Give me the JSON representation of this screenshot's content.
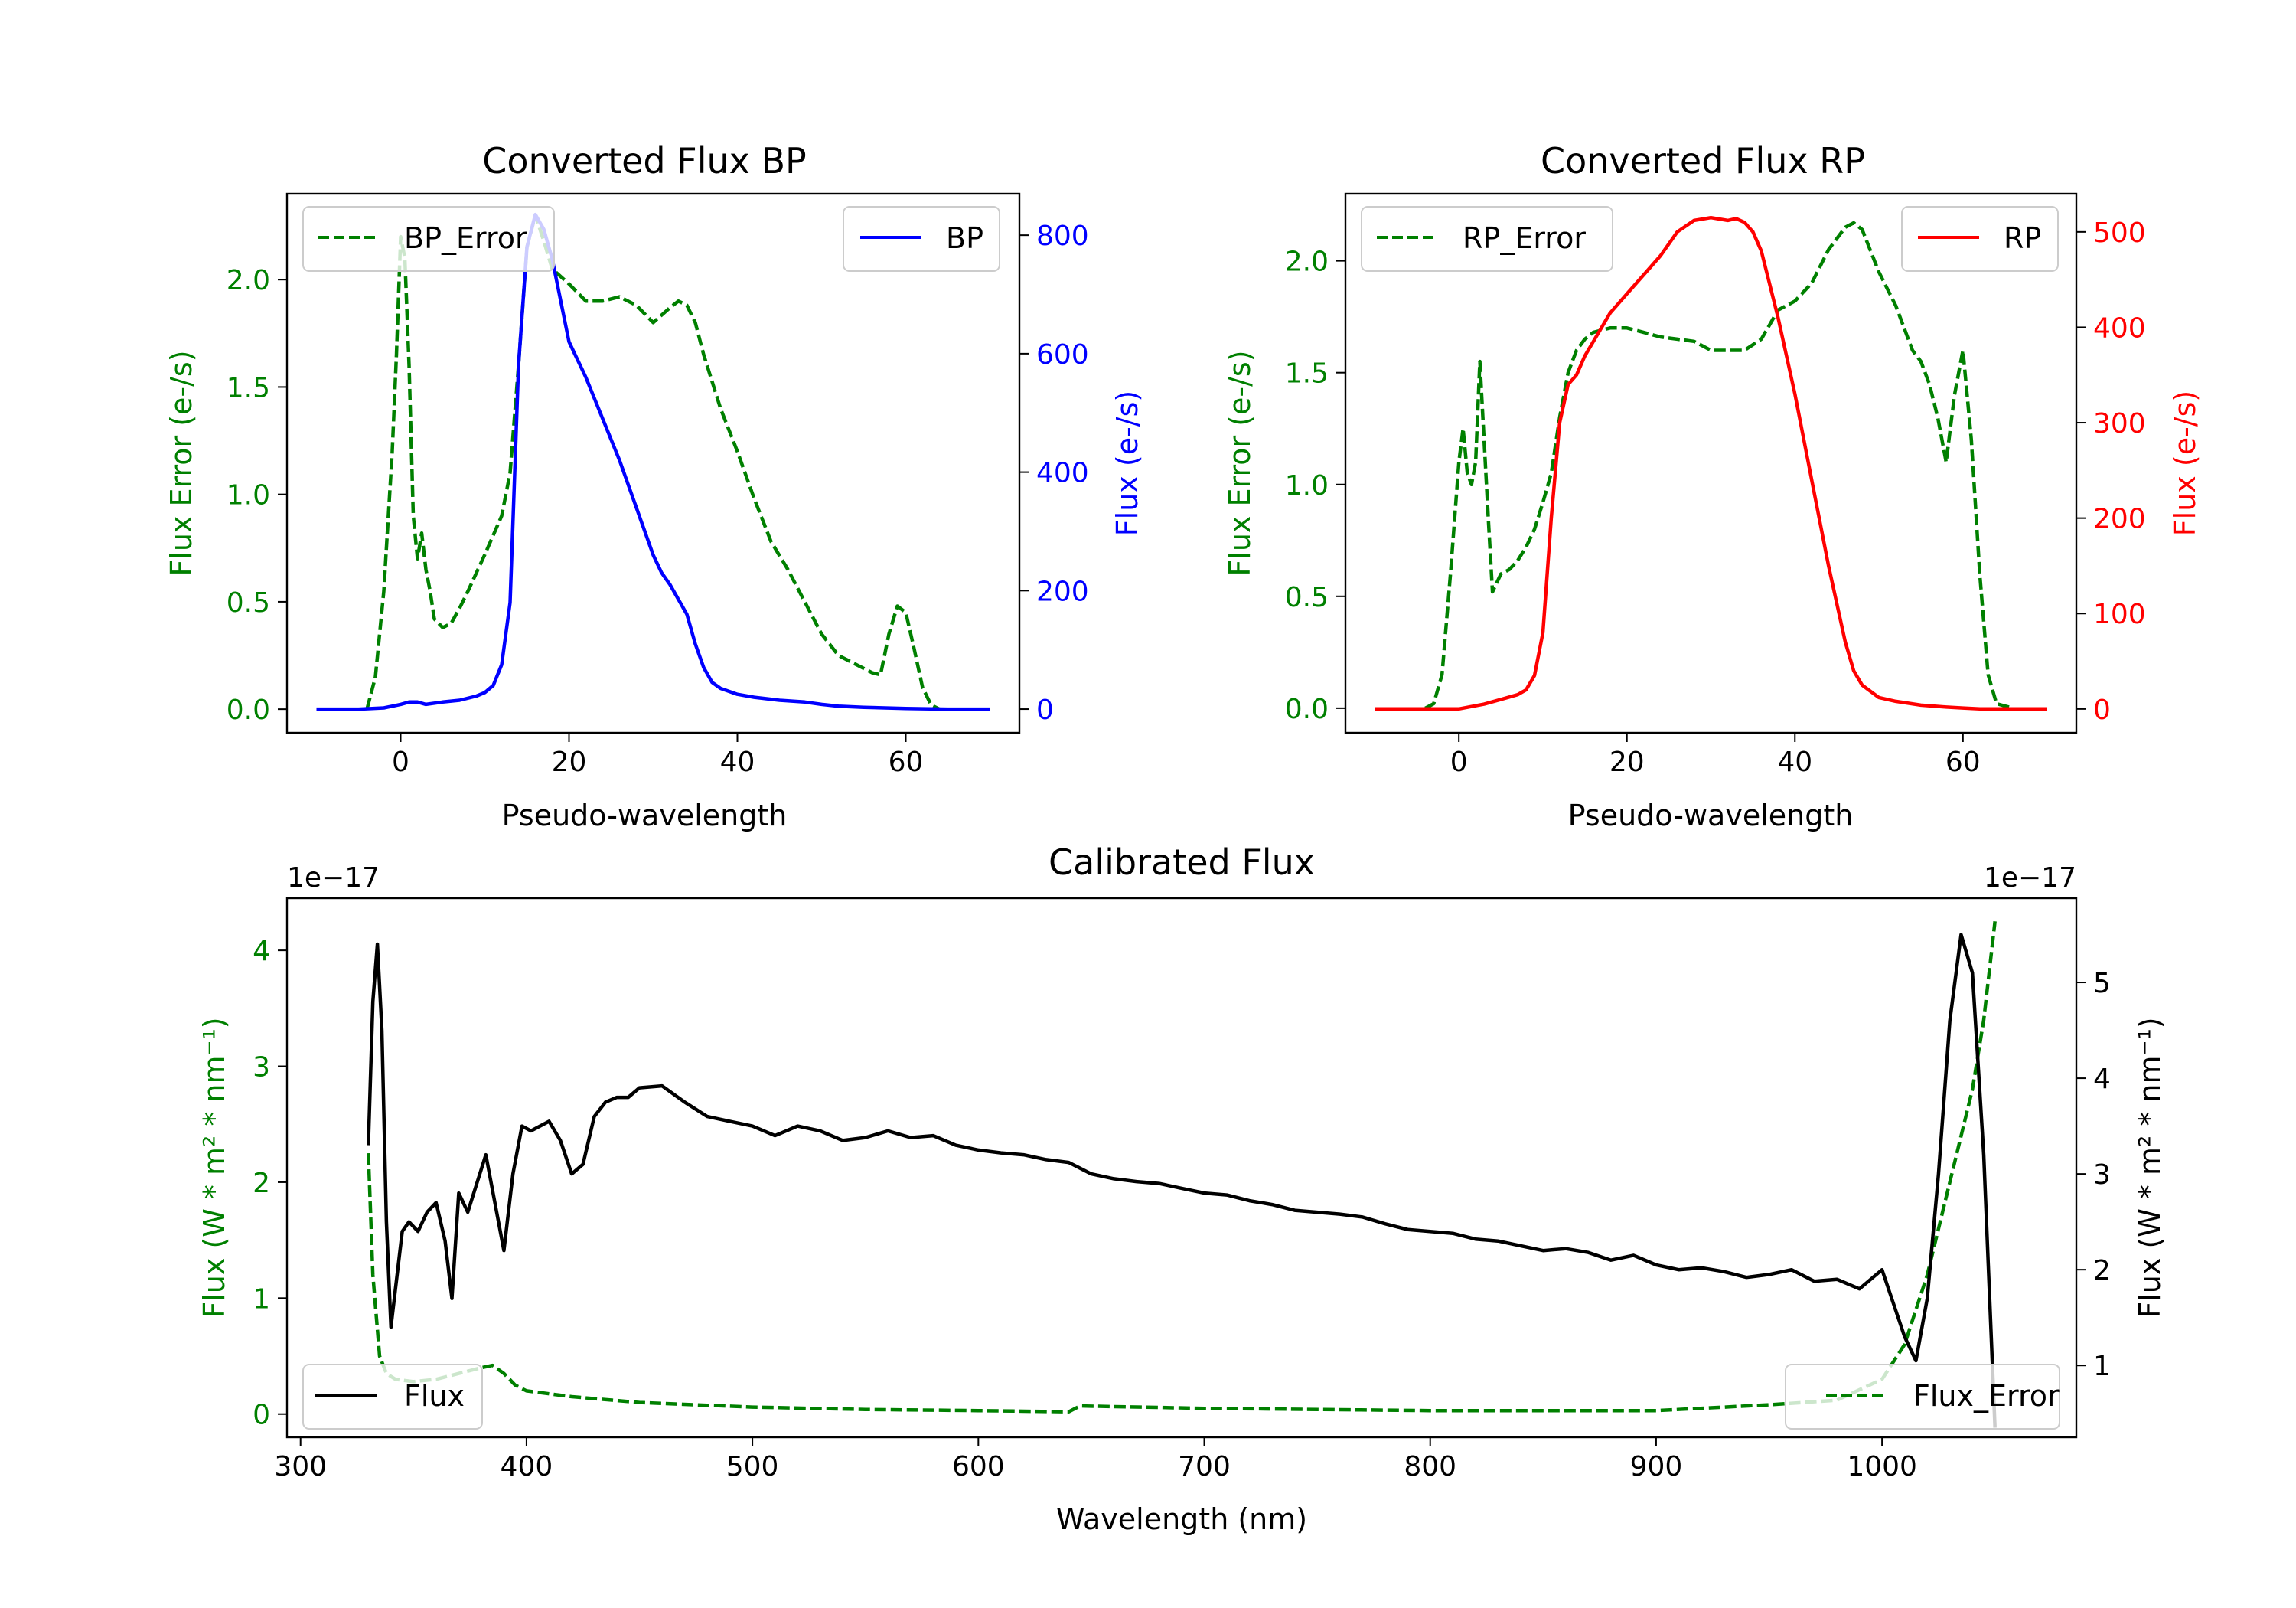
{
  "chart_data": [
    {
      "type": "line",
      "title": "Converted Flux BP",
      "xlabel": "Pseudo-wavelength",
      "ylabel_left": "Flux Error (e-/s)",
      "ylabel_right": "Flux (e-/s)",
      "xlim": [
        -13.5,
        73.5
      ],
      "ylim_left": [
        -0.11,
        2.4
      ],
      "ylim_right": [
        -40,
        870
      ],
      "xticks": [
        0,
        20,
        40,
        60
      ],
      "yticks_left": [
        0.0,
        0.5,
        1.0,
        1.5,
        2.0
      ],
      "yticks_right": [
        0,
        200,
        400,
        600,
        800
      ],
      "series": [
        {
          "name": "BP_Error",
          "axis": "left",
          "color": "#008000",
          "style": "dashed",
          "x": [
            -4,
            -3,
            -2,
            -1,
            -0.5,
            0,
            0.5,
            1,
            1.5,
            2,
            2.5,
            3,
            3.5,
            4,
            5,
            6,
            7,
            8,
            10,
            12,
            13,
            14,
            15,
            16,
            17,
            18,
            20,
            22,
            24,
            26,
            28,
            30,
            32,
            33,
            34,
            35,
            36,
            38,
            40,
            42,
            44,
            46,
            48,
            50,
            52,
            54,
            56,
            57,
            58,
            59,
            60,
            61,
            62,
            63,
            64
          ],
          "y": [
            0.0,
            0.15,
            0.55,
            1.2,
            1.65,
            2.2,
            2.1,
            1.6,
            0.9,
            0.7,
            0.82,
            0.65,
            0.55,
            0.42,
            0.38,
            0.4,
            0.47,
            0.55,
            0.72,
            0.9,
            1.1,
            1.6,
            2.15,
            2.3,
            2.18,
            2.05,
            1.98,
            1.9,
            1.9,
            1.92,
            1.88,
            1.8,
            1.87,
            1.9,
            1.88,
            1.8,
            1.65,
            1.4,
            1.2,
            0.98,
            0.78,
            0.65,
            0.5,
            0.35,
            0.25,
            0.21,
            0.17,
            0.16,
            0.35,
            0.48,
            0.45,
            0.28,
            0.1,
            0.02,
            0.0
          ]
        },
        {
          "name": "BP",
          "axis": "right",
          "color": "#0000ff",
          "style": "solid",
          "x": [
            -10,
            -5,
            -2,
            0,
            1,
            2,
            3,
            5,
            7,
            9,
            10,
            11,
            12,
            13,
            14,
            15,
            16,
            17,
            18,
            19,
            20,
            22,
            24,
            26,
            28,
            30,
            31,
            32,
            34,
            35,
            36,
            37,
            38,
            40,
            42,
            45,
            48,
            50,
            52,
            55,
            60,
            65,
            70
          ],
          "y": [
            0,
            0,
            2,
            8,
            12,
            12,
            8,
            12,
            15,
            22,
            28,
            40,
            75,
            180,
            580,
            780,
            835,
            810,
            760,
            690,
            620,
            560,
            490,
            420,
            340,
            260,
            230,
            210,
            160,
            110,
            70,
            45,
            35,
            25,
            20,
            15,
            12,
            8,
            5,
            3,
            1,
            0,
            0
          ]
        }
      ],
      "legend": [
        {
          "label": "BP_Error",
          "position": "upper left"
        },
        {
          "label": "BP",
          "position": "upper right"
        }
      ]
    },
    {
      "type": "line",
      "title": "Converted Flux RP",
      "xlabel": "Pseudo-wavelength",
      "ylabel_left": "Flux Error (e-/s)",
      "ylabel_right": "Flux (e-/s)",
      "xlim": [
        -13.5,
        73.5
      ],
      "ylim_left": [
        -0.11,
        2.3
      ],
      "ylim_right": [
        -25,
        540
      ],
      "xticks": [
        0,
        20,
        40,
        60
      ],
      "yticks_left": [
        0.0,
        0.5,
        1.0,
        1.5,
        2.0
      ],
      "yticks_right": [
        0,
        100,
        200,
        300,
        400,
        500
      ],
      "series": [
        {
          "name": "RP_Error",
          "axis": "left",
          "color": "#008000",
          "style": "dashed",
          "x": [
            -4,
            -3,
            -2,
            -1,
            0,
            0.5,
            1,
            1.5,
            2,
            2.5,
            3,
            3.5,
            4,
            5,
            6,
            7,
            8,
            9,
            10,
            11,
            12,
            13,
            14,
            15,
            16,
            18,
            20,
            22,
            24,
            26,
            28,
            30,
            32,
            34,
            36,
            38,
            40,
            42,
            44,
            46,
            47,
            48,
            50,
            52,
            54,
            55,
            56,
            57,
            58,
            59,
            60,
            61,
            62,
            63,
            64,
            66
          ],
          "y": [
            0.0,
            0.02,
            0.15,
            0.6,
            1.1,
            1.25,
            1.05,
            1.0,
            1.1,
            1.55,
            1.2,
            0.85,
            0.52,
            0.6,
            0.62,
            0.66,
            0.72,
            0.8,
            0.92,
            1.05,
            1.3,
            1.5,
            1.6,
            1.65,
            1.68,
            1.7,
            1.7,
            1.68,
            1.66,
            1.65,
            1.64,
            1.6,
            1.6,
            1.6,
            1.65,
            1.78,
            1.82,
            1.9,
            2.05,
            2.15,
            2.17,
            2.14,
            1.95,
            1.8,
            1.6,
            1.55,
            1.45,
            1.3,
            1.1,
            1.4,
            1.6,
            1.2,
            0.6,
            0.15,
            0.02,
            0.0
          ]
        },
        {
          "name": "RP",
          "axis": "right",
          "color": "#ff0000",
          "style": "solid",
          "x": [
            -10,
            -5,
            0,
            3,
            5,
            7,
            8,
            9,
            10,
            11,
            12,
            13,
            14,
            15,
            16,
            18,
            20,
            22,
            24,
            26,
            28,
            30,
            32,
            33,
            34,
            35,
            36,
            38,
            40,
            42,
            44,
            46,
            47,
            48,
            50,
            52,
            55,
            58,
            60,
            62,
            65,
            70
          ],
          "y": [
            0,
            0,
            0,
            5,
            10,
            15,
            20,
            35,
            80,
            200,
            300,
            340,
            350,
            370,
            385,
            415,
            435,
            455,
            475,
            500,
            512,
            515,
            512,
            514,
            510,
            500,
            480,
            410,
            330,
            240,
            150,
            70,
            40,
            25,
            12,
            8,
            4,
            2,
            1,
            0,
            0,
            0
          ]
        }
      ],
      "legend": [
        {
          "label": "RP_Error",
          "position": "upper left"
        },
        {
          "label": "RP",
          "position": "upper right"
        }
      ]
    },
    {
      "type": "line",
      "title": "Calibrated Flux",
      "xlabel": "Wavelength (nm)",
      "ylabel_left": "Flux (W * m² * nm⁻¹)",
      "ylabel_right": "Flux (W * m² * nm⁻¹)",
      "offset_left": "1e−17",
      "offset_right": "1e−17",
      "xlim": [
        294,
        1086
      ],
      "ylim_left": [
        -0.2,
        4.45
      ],
      "ylim_right": [
        0.25,
        5.88
      ],
      "xticks": [
        300,
        400,
        500,
        600,
        700,
        800,
        900,
        1000
      ],
      "yticks_left": [
        0,
        1,
        2,
        3,
        4
      ],
      "yticks_right": [
        1,
        2,
        3,
        4,
        5
      ],
      "series": [
        {
          "name": "Flux_Error",
          "axis": "left",
          "color": "#008000",
          "style": "dashed",
          "x": [
            330,
            332,
            335,
            338,
            342,
            350,
            360,
            370,
            380,
            385,
            390,
            395,
            400,
            420,
            450,
            500,
            550,
            600,
            640,
            645,
            700,
            800,
            900,
            950,
            980,
            1000,
            1010,
            1020,
            1030,
            1040,
            1045,
            1050
          ],
          "y": [
            2.25,
            1.2,
            0.5,
            0.35,
            0.3,
            0.28,
            0.3,
            0.35,
            0.4,
            0.42,
            0.35,
            0.25,
            0.2,
            0.15,
            0.1,
            0.06,
            0.04,
            0.03,
            0.02,
            0.07,
            0.05,
            0.03,
            0.03,
            0.08,
            0.12,
            0.3,
            0.6,
            1.2,
            2.0,
            2.8,
            3.4,
            4.25
          ]
        },
        {
          "name": "Flux",
          "axis": "right",
          "color": "#000000",
          "style": "solid",
          "x": [
            330,
            332,
            334,
            336,
            338,
            340,
            342,
            345,
            348,
            352,
            356,
            360,
            364,
            367,
            370,
            374,
            378,
            382,
            386,
            390,
            394,
            398,
            402,
            406,
            410,
            415,
            420,
            425,
            430,
            435,
            440,
            445,
            450,
            460,
            470,
            480,
            490,
            500,
            510,
            520,
            530,
            540,
            550,
            560,
            570,
            580,
            590,
            600,
            610,
            620,
            630,
            640,
            650,
            660,
            670,
            680,
            690,
            700,
            710,
            720,
            730,
            740,
            750,
            760,
            770,
            780,
            790,
            800,
            810,
            820,
            830,
            840,
            850,
            860,
            870,
            880,
            890,
            900,
            910,
            920,
            930,
            940,
            950,
            960,
            970,
            980,
            990,
            1000,
            1010,
            1015,
            1020,
            1025,
            1030,
            1035,
            1040,
            1045,
            1050
          ],
          "y": [
            3.3,
            4.8,
            5.4,
            4.5,
            2.5,
            1.4,
            1.8,
            2.4,
            2.5,
            2.4,
            2.6,
            2.7,
            2.3,
            1.7,
            2.8,
            2.6,
            2.9,
            3.2,
            2.7,
            2.2,
            3.0,
            3.5,
            3.45,
            3.5,
            3.55,
            3.35,
            3.0,
            3.1,
            3.6,
            3.75,
            3.8,
            3.8,
            3.9,
            3.92,
            3.75,
            3.6,
            3.55,
            3.5,
            3.4,
            3.5,
            3.45,
            3.35,
            3.38,
            3.45,
            3.38,
            3.4,
            3.3,
            3.25,
            3.22,
            3.2,
            3.15,
            3.12,
            3.0,
            2.95,
            2.92,
            2.9,
            2.85,
            2.8,
            2.78,
            2.72,
            2.68,
            2.62,
            2.6,
            2.58,
            2.55,
            2.48,
            2.42,
            2.4,
            2.38,
            2.32,
            2.3,
            2.25,
            2.2,
            2.22,
            2.18,
            2.1,
            2.15,
            2.05,
            2.0,
            2.02,
            1.98,
            1.92,
            1.95,
            2.0,
            1.88,
            1.9,
            1.8,
            2.0,
            1.3,
            1.05,
            1.7,
            3.0,
            4.6,
            5.5,
            5.1,
            3.2,
            0.35
          ]
        }
      ],
      "legend": [
        {
          "label": "Flux",
          "position": "lower left"
        },
        {
          "label": "Flux_Error",
          "position": "lower right"
        }
      ]
    }
  ]
}
